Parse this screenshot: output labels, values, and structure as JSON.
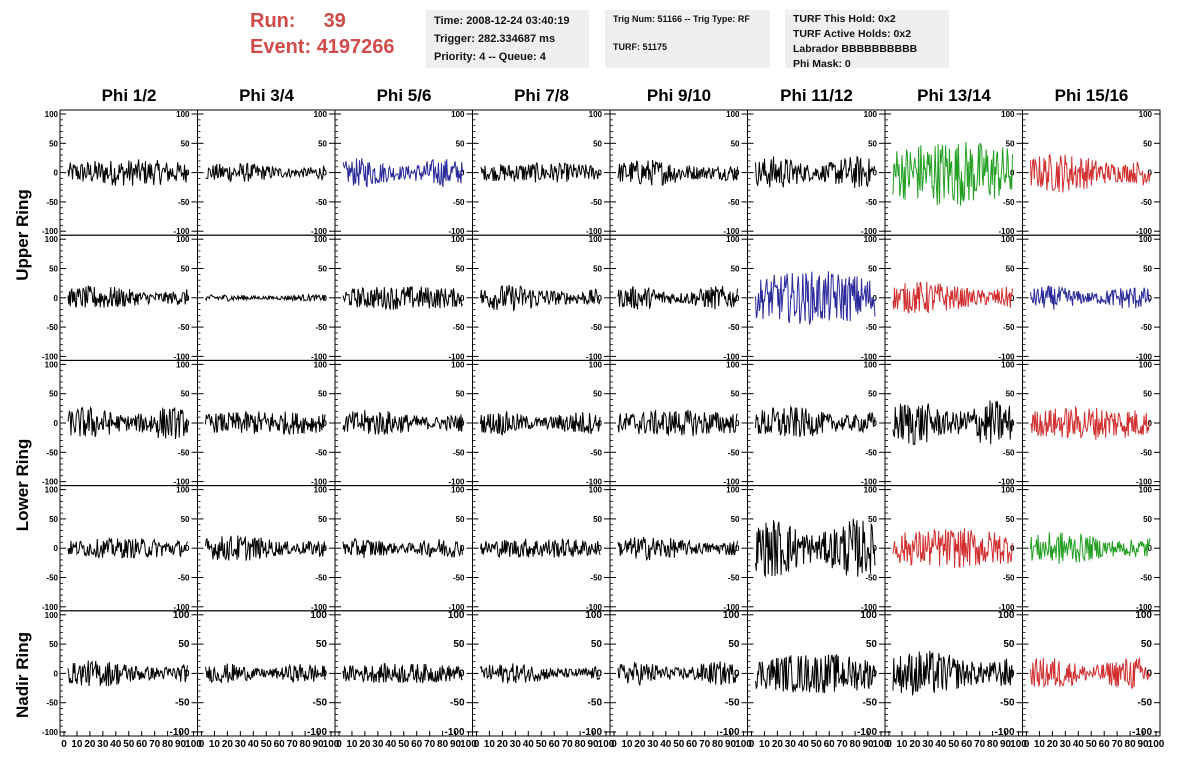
{
  "run_info": {
    "run_label": "Run:",
    "run_value": "39",
    "event_label": "Event:",
    "event_value": "4197266"
  },
  "time_info": {
    "time": "Time: 2008-12-24 03:40:19",
    "trigger": "Trigger: 282.334687 ms",
    "priority": "Priority: 4 -- Queue: 4"
  },
  "trig_info": {
    "trig_num": "Trig Num: 51166 -- Trig Type: RF",
    "turf": "TURF: 51175"
  },
  "turf_info": {
    "this_hold": "TURF This Hold: 0x2",
    "active_holds": "TURF Active Holds: 0x2",
    "labrador": "Labrador BBBBBBBBBB",
    "phi_mask": "Phi Mask: 0"
  },
  "columns": [
    "Phi 1/2",
    "Phi 3/4",
    "Phi 5/6",
    "Phi 7/8",
    "Phi 9/10",
    "Phi 11/12",
    "Phi 13/14",
    "Phi 15/16"
  ],
  "ring_labels": [
    "Upper Ring",
    "Lower Ring",
    "Nadir Ring"
  ],
  "y_ticks": [
    "100",
    "50",
    "0",
    "-50",
    "-100"
  ],
  "x_ticks": [
    "0",
    "10",
    "20",
    "30",
    "40",
    "50",
    "60",
    "70",
    "80",
    "90",
    "100"
  ],
  "colors": {
    "black": "#000000",
    "blue": "#2b2b9c",
    "green": "#23a023",
    "red": "#d23030",
    "header_red": "#d24b4b"
  },
  "trace_colors": [
    [
      "black",
      "black",
      "blue",
      "black",
      "black",
      "black",
      "green",
      "red"
    ],
    [
      "black",
      "black",
      "black",
      "black",
      "black",
      "blue",
      "red",
      "blue"
    ],
    [
      "black",
      "black",
      "black",
      "black",
      "black",
      "black",
      "black",
      "red"
    ],
    [
      "black",
      "black",
      "black",
      "black",
      "black",
      "black",
      "red",
      "green"
    ],
    [
      "black",
      "black",
      "black",
      "black",
      "black",
      "black",
      "black",
      "red"
    ]
  ],
  "trace_amplitude": [
    [
      20,
      15,
      22,
      15,
      20,
      25,
      50,
      30
    ],
    [
      18,
      5,
      18,
      20,
      18,
      40,
      25,
      18
    ],
    [
      25,
      18,
      20,
      18,
      20,
      25,
      35,
      25
    ],
    [
      15,
      20,
      15,
      15,
      18,
      45,
      30,
      25
    ],
    [
      20,
      15,
      15,
      15,
      18,
      30,
      35,
      25
    ]
  ]
}
